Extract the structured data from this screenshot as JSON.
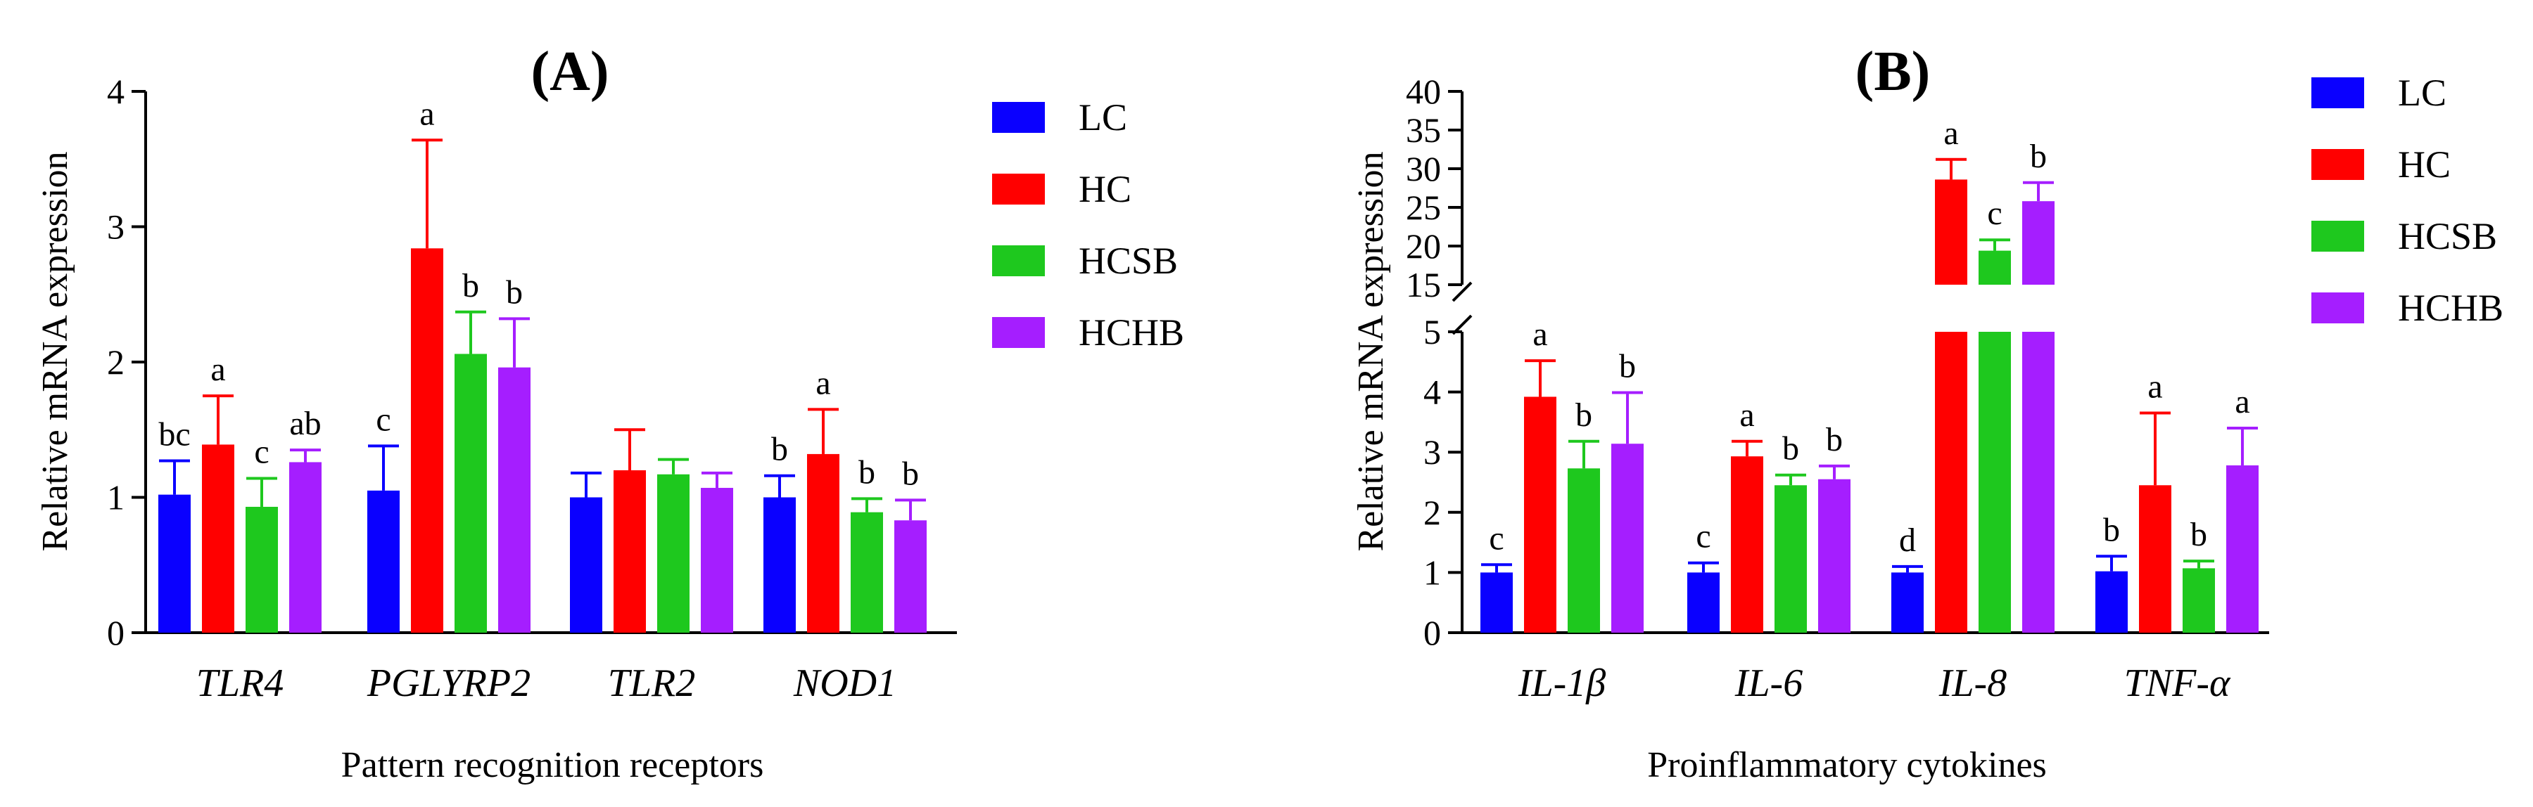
{
  "colors": {
    "LC": "#0a00ff",
    "HC": "#ff0000",
    "HCSB": "#1ec81e",
    "HCHB": "#a51eff",
    "axis": "#000000"
  },
  "chart_data": [
    {
      "type": "bar",
      "panel_label": "(A)",
      "title": "(A)",
      "xlabel": "Pattern recognition receptors",
      "ylabel": "Relative mRNA expression",
      "ylim": [
        0,
        4
      ],
      "yticks": [
        "0",
        "1",
        "2",
        "3",
        "4"
      ],
      "categories": [
        "TLR4",
        "PGLYRP2",
        "TLR2",
        "NOD1"
      ],
      "legend": [
        "LC",
        "HC",
        "HCSB",
        "HCHB"
      ],
      "legend_position": "right",
      "series": [
        {
          "name": "LC",
          "values": [
            1.02,
            1.05,
            1.0,
            1.0
          ],
          "errors": [
            0.25,
            0.33,
            0.18,
            0.16
          ],
          "letters": [
            "bc",
            "c",
            "",
            "b"
          ]
        },
        {
          "name": "HC",
          "values": [
            1.39,
            2.84,
            1.2,
            1.32
          ],
          "errors": [
            0.36,
            0.8,
            0.3,
            0.33
          ],
          "letters": [
            "a",
            "a",
            "",
            "a"
          ]
        },
        {
          "name": "HCSB",
          "values": [
            0.93,
            2.06,
            1.17,
            0.89
          ],
          "errors": [
            0.21,
            0.31,
            0.11,
            0.1
          ],
          "letters": [
            "c",
            "b",
            "",
            "b"
          ]
        },
        {
          "name": "HCHB",
          "values": [
            1.26,
            1.96,
            1.07,
            0.83
          ],
          "errors": [
            0.09,
            0.36,
            0.11,
            0.15
          ],
          "letters": [
            "ab",
            "b",
            "",
            "b"
          ]
        }
      ]
    },
    {
      "type": "bar",
      "panel_label": "(B)",
      "title": "(B)",
      "xlabel": "Proinflammatory cytokines",
      "ylabel": "Relative mRNA expression",
      "ylim": [
        0,
        40
      ],
      "axis_break": [
        5,
        15
      ],
      "yticks_lower": [
        "0",
        "1",
        "2",
        "3",
        "4",
        "5"
      ],
      "yticks_upper": [
        "15",
        "20",
        "25",
        "30",
        "35",
        "40"
      ],
      "categories": [
        "IL-1β",
        "IL-6",
        "IL-8",
        "TNF-α"
      ],
      "legend": [
        "LC",
        "HC",
        "HCSB",
        "HCHB"
      ],
      "legend_position": "right",
      "series": [
        {
          "name": "LC",
          "values": [
            1.0,
            1.0,
            1.0,
            1.02
          ],
          "errors": [
            0.13,
            0.16,
            0.1,
            0.25
          ],
          "letters": [
            "c",
            "c",
            "d",
            "b"
          ]
        },
        {
          "name": "HC",
          "values": [
            3.92,
            2.93,
            28.6,
            2.45
          ],
          "errors": [
            0.6,
            0.25,
            2.6,
            1.2
          ],
          "letters": [
            "a",
            "a",
            "a",
            "a"
          ]
        },
        {
          "name": "HCSB",
          "values": [
            2.73,
            2.45,
            19.4,
            1.07
          ],
          "errors": [
            0.45,
            0.17,
            1.4,
            0.12
          ],
          "letters": [
            "b",
            "b",
            "c",
            "b"
          ]
        },
        {
          "name": "HCHB",
          "values": [
            3.14,
            2.55,
            25.8,
            2.78
          ],
          "errors": [
            0.85,
            0.22,
            2.4,
            0.62
          ],
          "letters": [
            "b",
            "b",
            "b",
            "a"
          ]
        }
      ]
    }
  ]
}
